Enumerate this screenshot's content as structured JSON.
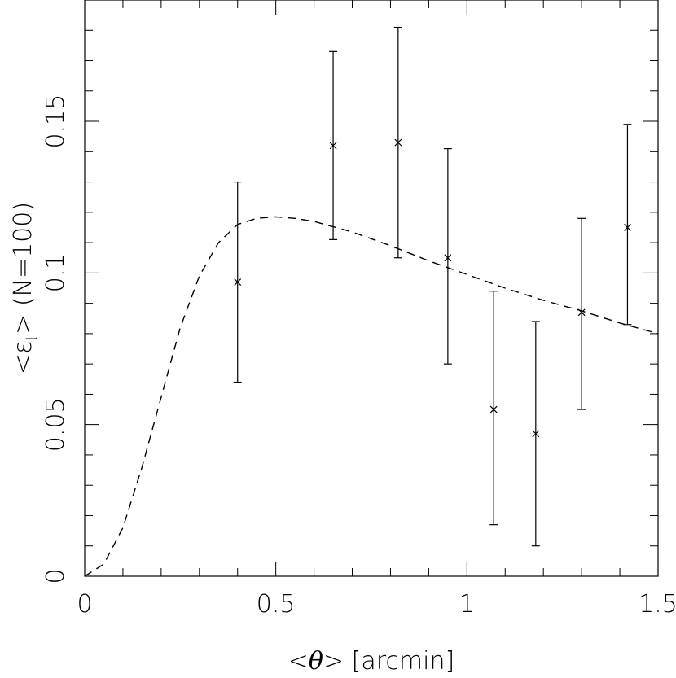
{
  "chart_data": {
    "type": "scatter",
    "xlabel": "<θ> [arcmin]",
    "ylabel": "<ε_t> (N=100)",
    "xlabel_parts": {
      "pre": "<",
      "sym": "θ",
      "post": "> [arcmin]"
    },
    "ylabel_parts": {
      "pre": "<ε",
      "sub": "t",
      "post": ">  (N=100)"
    },
    "xlim": [
      0,
      1.5
    ],
    "ylim": [
      0,
      0.19
    ],
    "x_ticks": [
      0,
      0.5,
      1,
      1.5
    ],
    "x_tick_labels": [
      "0",
      "0.5",
      "1",
      "1.5"
    ],
    "x_minor_step": 0.1,
    "y_ticks": [
      0,
      0.05,
      0.1,
      0.15
    ],
    "y_tick_labels": [
      "0",
      "0.05",
      "0.1",
      "0.15"
    ],
    "y_minor_step": 0.01,
    "grid": false,
    "series": [
      {
        "kind": "points-with-errorbars",
        "marker": "x",
        "x": [
          0.4,
          0.65,
          0.82,
          0.95,
          1.07,
          1.18,
          1.3,
          1.42
        ],
        "y": [
          0.097,
          0.142,
          0.143,
          0.105,
          0.055,
          0.047,
          0.087,
          0.115
        ],
        "y_low": [
          0.064,
          0.111,
          0.105,
          0.07,
          0.017,
          0.01,
          0.055,
          0.083
        ],
        "y_high": [
          0.13,
          0.173,
          0.181,
          0.141,
          0.094,
          0.084,
          0.118,
          0.149
        ]
      },
      {
        "kind": "line",
        "style": "dashed",
        "x": [
          0.0,
          0.05,
          0.1,
          0.15,
          0.2,
          0.25,
          0.3,
          0.35,
          0.4,
          0.45,
          0.5,
          0.55,
          0.6,
          0.7,
          0.8,
          0.9,
          1.0,
          1.1,
          1.2,
          1.3,
          1.4,
          1.5
        ],
        "y": [
          0.0,
          0.004,
          0.016,
          0.036,
          0.059,
          0.082,
          0.099,
          0.11,
          0.116,
          0.118,
          0.1185,
          0.118,
          0.117,
          0.1135,
          0.109,
          0.104,
          0.0995,
          0.095,
          0.091,
          0.0875,
          0.0835,
          0.08
        ]
      }
    ]
  }
}
